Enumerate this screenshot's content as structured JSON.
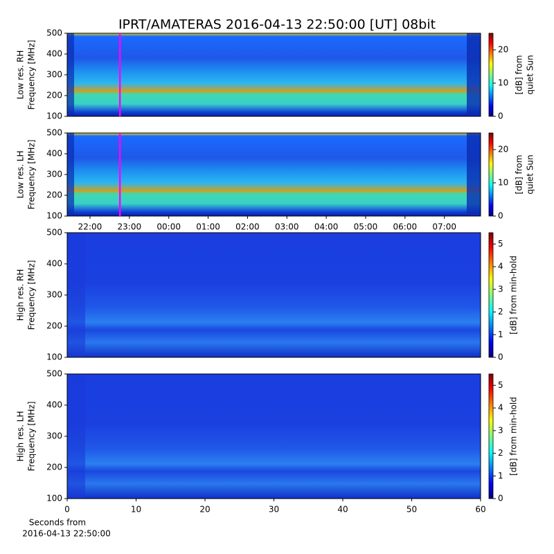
{
  "figure_title": "IPRT/AMATERAS 2016-04-13 22:50:00 [UT]   08bit",
  "chart_data": [
    {
      "type": "heatmap",
      "ylabel": [
        "Low res. RH",
        "Frequency [MHz]"
      ],
      "ylim": [
        100,
        500
      ],
      "yticks": [
        100,
        200,
        300,
        400,
        500
      ],
      "xlim": [
        21.42,
        31.92
      ],
      "cursor": 22.76,
      "cursor_color": "#ff00ff",
      "colorbar_label": [
        "[dB] from",
        "quiet Sun"
      ],
      "clim": [
        0,
        25
      ],
      "cticks": [
        0,
        10,
        20
      ]
    },
    {
      "type": "heatmap",
      "ylabel": [
        "Low res. LH",
        "Frequency [MHz]"
      ],
      "ylim": [
        100,
        500
      ],
      "yticks": [
        100,
        200,
        300,
        400,
        500
      ],
      "xlim": [
        21.42,
        31.92
      ],
      "cursor": 22.76,
      "cursor_color": "#ff00ff",
      "xticks": [
        {
          "value": 22,
          "label": "22:00"
        },
        {
          "value": 23,
          "label": "23:00"
        },
        {
          "value": 24,
          "label": "00:00"
        },
        {
          "value": 25,
          "label": "01:00"
        },
        {
          "value": 26,
          "label": "02:00"
        },
        {
          "value": 27,
          "label": "03:00"
        },
        {
          "value": 28,
          "label": "04:00"
        },
        {
          "value": 29,
          "label": "05:00"
        },
        {
          "value": 30,
          "label": "06:00"
        },
        {
          "value": 31,
          "label": "07:00"
        }
      ],
      "colorbar_label": [
        "[dB] from",
        "quiet Sun"
      ],
      "clim": [
        0,
        25
      ],
      "cticks": [
        0,
        10,
        20
      ]
    },
    {
      "type": "heatmap",
      "ylabel": [
        "High res. RH",
        "Frequency [MHz]"
      ],
      "ylim": [
        100,
        500
      ],
      "yticks": [
        100,
        200,
        300,
        400,
        500
      ],
      "colorbar_label": [
        "[dB] from min-hold"
      ],
      "clim": [
        0,
        5.5
      ],
      "cticks": [
        0,
        1,
        2,
        3,
        4,
        5
      ]
    },
    {
      "type": "heatmap",
      "ylabel": [
        "High res. LH",
        "Frequency [MHz]"
      ],
      "ylim": [
        100,
        500
      ],
      "yticks": [
        100,
        200,
        300,
        400,
        500
      ],
      "xlim": [
        0,
        60
      ],
      "xticks": [
        0,
        10,
        20,
        30,
        40,
        50,
        60
      ],
      "xlabel": [
        "Seconds from",
        "2016-04-13 22:50:00"
      ],
      "colorbar_label": [
        "[dB] from min-hold"
      ],
      "clim": [
        0,
        5.5
      ],
      "cticks": [
        0,
        1,
        2,
        3,
        4,
        5
      ]
    }
  ]
}
